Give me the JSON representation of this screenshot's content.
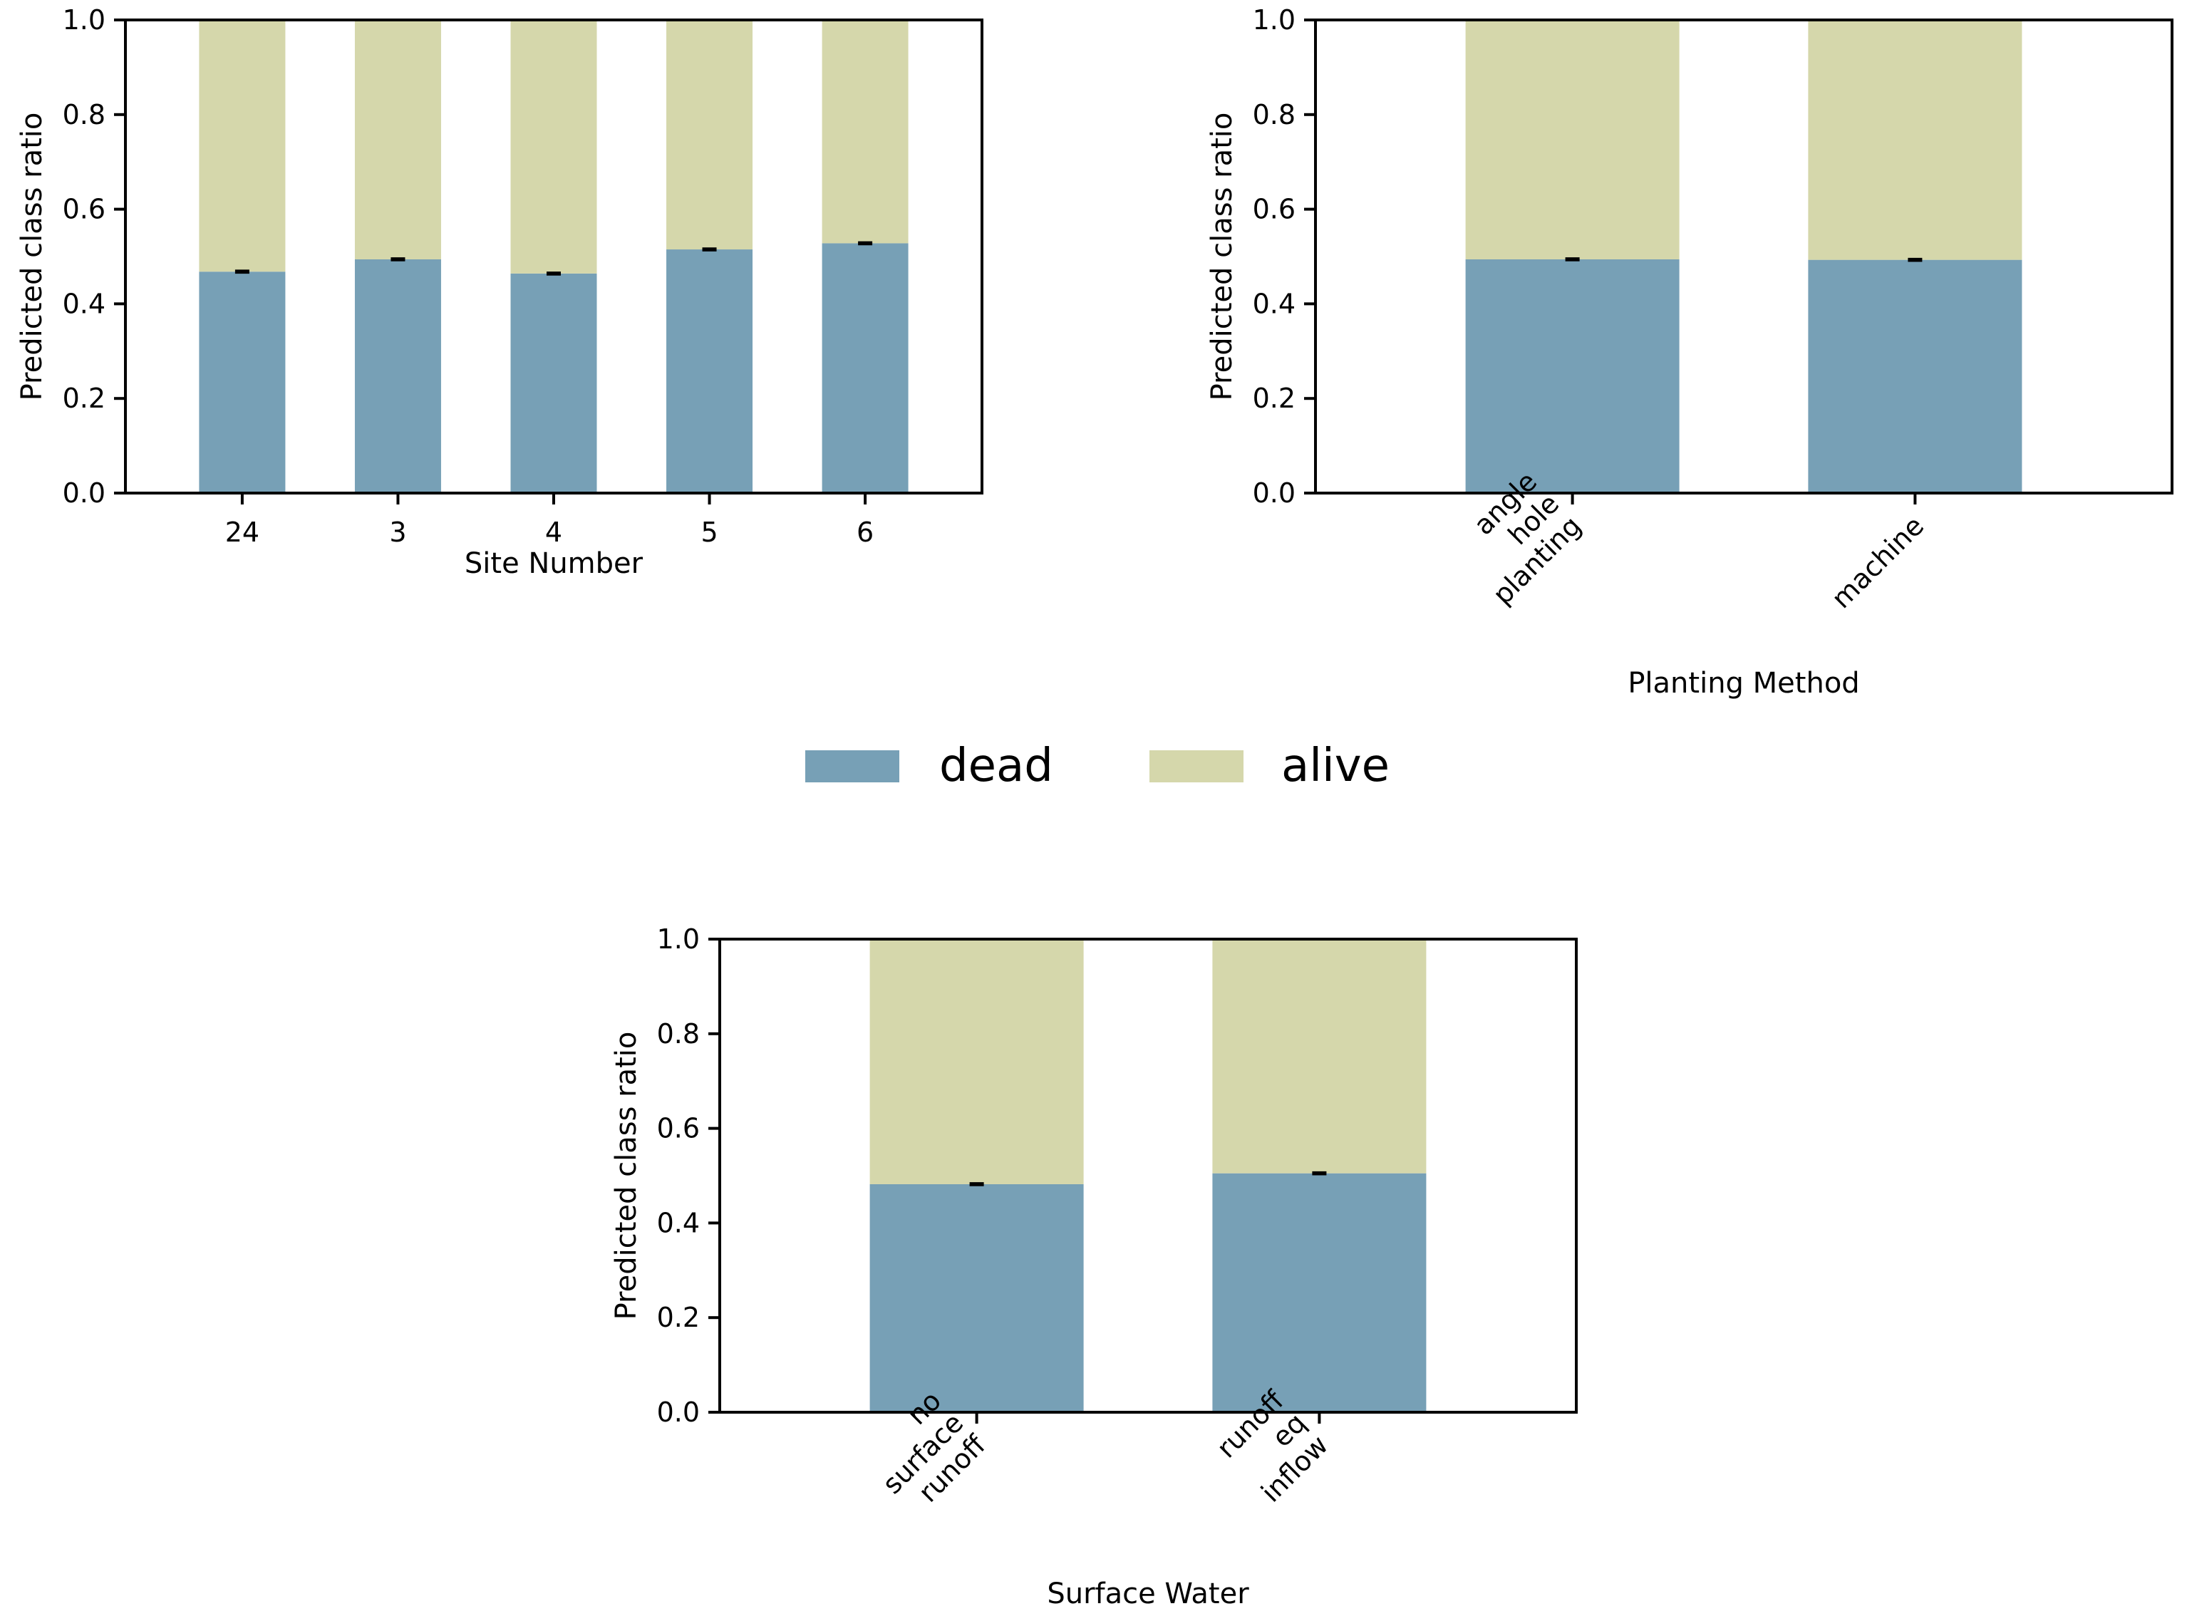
{
  "colors": {
    "dead": "#77a0b6",
    "alive": "#d5d7ab",
    "axis": "#000000"
  },
  "legend": {
    "placement": "center",
    "items": [
      {
        "key": "dead",
        "label": "dead"
      },
      {
        "key": "alive",
        "label": "alive"
      }
    ]
  },
  "chart_data": [
    {
      "type": "bar",
      "stacked": true,
      "title": "",
      "xlabel": "Site Number",
      "ylabel": "Predicted class ratio",
      "ylim": [
        0,
        1
      ],
      "yticks": [
        "0.0",
        "0.2",
        "0.4",
        "0.6",
        "0.8",
        "1.0"
      ],
      "categories": [
        "24",
        "3",
        "4",
        "5",
        "6"
      ],
      "series": [
        {
          "name": "dead",
          "values": [
            0.468,
            0.494,
            0.464,
            0.515,
            0.528
          ],
          "error": [
            0.002,
            0.002,
            0.002,
            0.002,
            0.002
          ]
        },
        {
          "name": "alive",
          "values": [
            0.532,
            0.506,
            0.536,
            0.485,
            0.472
          ]
        }
      ]
    },
    {
      "type": "bar",
      "stacked": true,
      "title": "",
      "xlabel": "Planting Method",
      "ylabel": "Predicted class ratio",
      "ylim": [
        0,
        1
      ],
      "yticks": [
        "0.0",
        "0.2",
        "0.4",
        "0.6",
        "0.8",
        "1.0"
      ],
      "categories": [
        "angle\nhole\nplanting",
        "machine"
      ],
      "series": [
        {
          "name": "dead",
          "values": [
            0.494,
            0.493
          ],
          "error": [
            0.002,
            0.002
          ]
        },
        {
          "name": "alive",
          "values": [
            0.506,
            0.507
          ]
        }
      ]
    },
    {
      "type": "bar",
      "stacked": true,
      "title": "",
      "xlabel": "Surface Water",
      "ylabel": "Predicted class ratio",
      "ylim": [
        0,
        1
      ],
      "yticks": [
        "0.0",
        "0.2",
        "0.4",
        "0.6",
        "0.8",
        "1.0"
      ],
      "categories": [
        "no\nsurface\nrunoff",
        "runoff\neq\ninflow"
      ],
      "series": [
        {
          "name": "dead",
          "values": [
            0.482,
            0.505
          ],
          "error": [
            0.002,
            0.002
          ]
        },
        {
          "name": "alive",
          "values": [
            0.518,
            0.495
          ]
        }
      ]
    }
  ]
}
